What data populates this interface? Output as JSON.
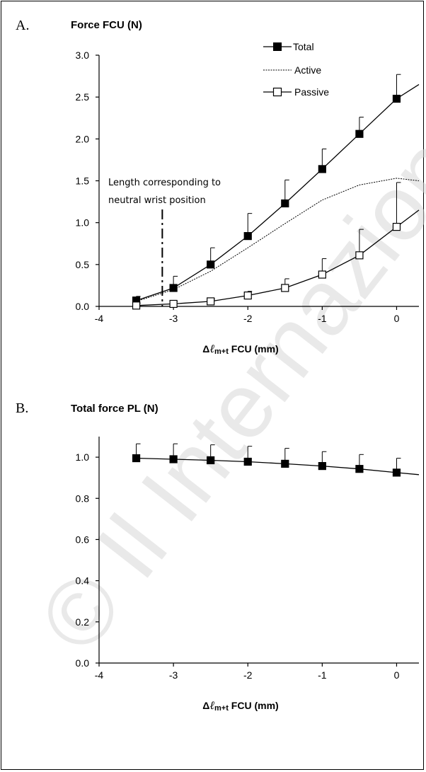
{
  "chart_data": [
    {
      "type": "line",
      "panel_label": "A.",
      "title": "Force  FCU (N)",
      "xlabel": {
        "delta": "Δ",
        "ell": "ℓ",
        "sub": "m+t",
        "rest": " FCU (mm)"
      },
      "xlim": [
        -4,
        0.3
      ],
      "ylim": [
        0,
        3
      ],
      "xticks": [
        "-4",
        "-3",
        "-2",
        "-1",
        "0"
      ],
      "yticks": [
        "0.0",
        "0.5",
        "1.0",
        "1.5",
        "2.0",
        "2.5",
        "3.0"
      ],
      "legend_position": "top-right",
      "annotation": {
        "lines": [
          "Length corresponding to",
          "neutral wrist position"
        ],
        "x": -3.15
      },
      "series": [
        {
          "name": "Total",
          "marker": "filled-square",
          "line": "solid",
          "x": [
            -3.5,
            -3,
            -2.5,
            -2,
            -1.5,
            -1,
            -0.5,
            0
          ],
          "y": [
            0.07,
            0.22,
            0.5,
            0.84,
            1.23,
            1.64,
            2.06,
            2.48
          ],
          "err": [
            0.05,
            0.14,
            0.2,
            0.27,
            0.28,
            0.24,
            0.2,
            0.29
          ],
          "curve_x": [
            -3.5,
            -3,
            -2.5,
            -2,
            -1.5,
            -1,
            -0.5,
            0,
            0.3
          ],
          "curve_y": [
            0.07,
            0.22,
            0.5,
            0.84,
            1.23,
            1.64,
            2.06,
            2.48,
            2.65
          ]
        },
        {
          "name": "Active",
          "marker": "none",
          "line": "dashed",
          "curve_x": [
            -3.5,
            -3.25,
            -3,
            -2.5,
            -2,
            -1.5,
            -1,
            -0.5,
            0,
            0.3
          ],
          "curve_y": [
            0.06,
            0.13,
            0.2,
            0.42,
            0.7,
            0.99,
            1.27,
            1.45,
            1.53,
            1.5
          ]
        },
        {
          "name": "Passive",
          "marker": "open-square",
          "line": "solid",
          "x": [
            -3.5,
            -3,
            -2.5,
            -2,
            -1.5,
            -1,
            -0.5,
            0
          ],
          "y": [
            0.01,
            0.03,
            0.06,
            0.13,
            0.22,
            0.38,
            0.61,
            0.95
          ],
          "err": [
            0.03,
            0.03,
            0.03,
            0.05,
            0.11,
            0.19,
            0.31,
            0.53
          ],
          "curve_x": [
            -3.5,
            -3,
            -2.5,
            -2,
            -1.5,
            -1,
            -0.5,
            0,
            0.3
          ],
          "curve_y": [
            0.01,
            0.03,
            0.06,
            0.13,
            0.22,
            0.38,
            0.61,
            0.95,
            1.15
          ]
        }
      ]
    },
    {
      "type": "line",
      "panel_label": "B.",
      "title": "Total force PL (N)",
      "xlabel": {
        "delta": "Δ",
        "ell": "ℓ",
        "sub": "m+t",
        "rest": " FCU (mm)"
      },
      "xlim": [
        -4,
        0.3
      ],
      "ylim": [
        0,
        1.1
      ],
      "xticks": [
        "-4",
        "-3",
        "-2",
        "-1",
        "0"
      ],
      "yticks": [
        "0.0",
        "0.2",
        "0.4",
        "0.6",
        "0.8",
        "1.0"
      ],
      "series": [
        {
          "marker": "filled-square",
          "line": "solid",
          "x": [
            -3.5,
            -3,
            -2.5,
            -2,
            -1.5,
            -1,
            -0.5,
            0
          ],
          "y": [
            0.995,
            0.99,
            0.985,
            0.978,
            0.968,
            0.957,
            0.943,
            0.925
          ],
          "err": [
            0.07,
            0.075,
            0.075,
            0.075,
            0.075,
            0.07,
            0.07,
            0.07
          ],
          "curve_x": [
            -3.5,
            -3,
            -2.5,
            -2,
            -1.5,
            -1,
            -0.5,
            0,
            0.3
          ],
          "curve_y": [
            0.995,
            0.99,
            0.985,
            0.978,
            0.968,
            0.957,
            0.943,
            0.925,
            0.915
          ]
        }
      ]
    }
  ],
  "watermark": "© Il Internazionale"
}
